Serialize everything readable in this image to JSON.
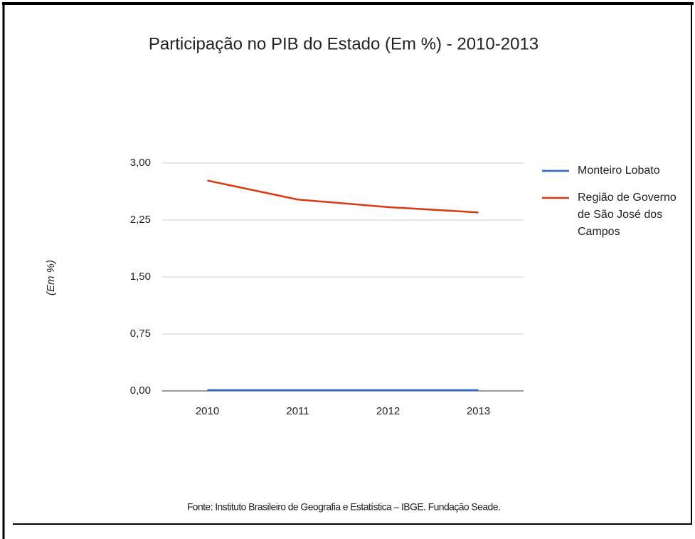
{
  "chart_data": {
    "type": "line",
    "title": "Participação no PIB do Estado (Em %) - 2010-2013",
    "y_label": "(Em %)",
    "source": "Fonte: Instituto Brasileiro de Geografia e Estatística – IBGE. Fundação Seade.",
    "categories": [
      "2010",
      "2011",
      "2012",
      "2013"
    ],
    "series": [
      {
        "name": "Monteiro Lobato",
        "color": "#3366cc",
        "values": [
          0.01,
          0.01,
          0.01,
          0.01
        ]
      },
      {
        "name": "Região de Governo de São José dos Campos",
        "color": "#dc3912",
        "values": [
          2.77,
          2.52,
          2.42,
          2.35
        ]
      }
    ],
    "ylim": [
      0,
      3
    ],
    "yticks": [
      {
        "value": 0,
        "label": "0,00"
      },
      {
        "value": 0.75,
        "label": "0,75"
      },
      {
        "value": 1.5,
        "label": "1,50"
      },
      {
        "value": 2.25,
        "label": "2,25"
      },
      {
        "value": 3,
        "label": "3,00"
      }
    ],
    "grid": true,
    "legend": "right"
  }
}
